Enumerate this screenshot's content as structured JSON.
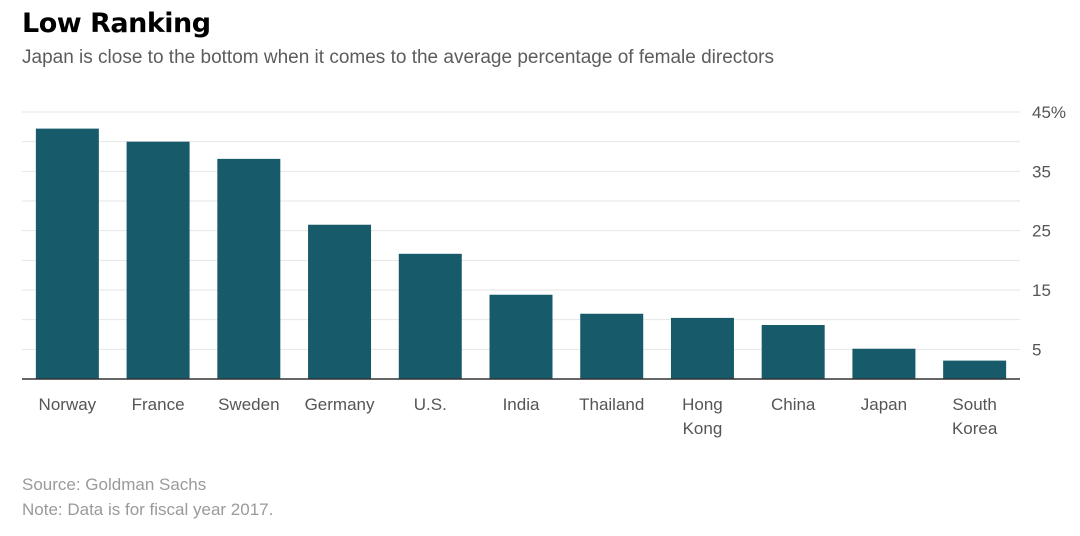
{
  "header": {
    "title": "Low Ranking",
    "subtitle": "Japan is close to the bottom when it comes to the average percentage of female directors"
  },
  "footer": {
    "source": "Source: Goldman Sachs",
    "note": "Note: Data is for fiscal year 2017."
  },
  "colors": {
    "bar": "#175b6b",
    "grid": "#e6e6e6",
    "axis": "#333333",
    "tick_text": "#555555",
    "category_text": "#555555"
  },
  "chart_data": {
    "type": "bar",
    "title": "Low Ranking",
    "subtitle": "Japan is close to the bottom when it comes to the average percentage of female directors",
    "categories": [
      [
        "Norway"
      ],
      [
        "France"
      ],
      [
        "Sweden"
      ],
      [
        "Germany"
      ],
      [
        "U.S."
      ],
      [
        "India"
      ],
      [
        "Thailand"
      ],
      [
        "Hong",
        "Kong"
      ],
      [
        "China"
      ],
      [
        "Japan"
      ],
      [
        "South",
        "Korea"
      ]
    ],
    "values": [
      42.2,
      40.0,
      37.1,
      26.0,
      21.1,
      14.2,
      11.0,
      10.3,
      9.1,
      5.1,
      3.1
    ],
    "ylim": [
      0,
      45
    ],
    "yticks": [
      5,
      15,
      25,
      35,
      45
    ],
    "ytick_labels": [
      "5",
      "15",
      "25",
      "35",
      "45%"
    ],
    "gridlines": [
      5,
      10,
      15,
      20,
      25,
      30,
      35,
      40,
      45
    ],
    "grid": true,
    "y_axis_side": "right",
    "xlabel": "",
    "ylabel": ""
  }
}
